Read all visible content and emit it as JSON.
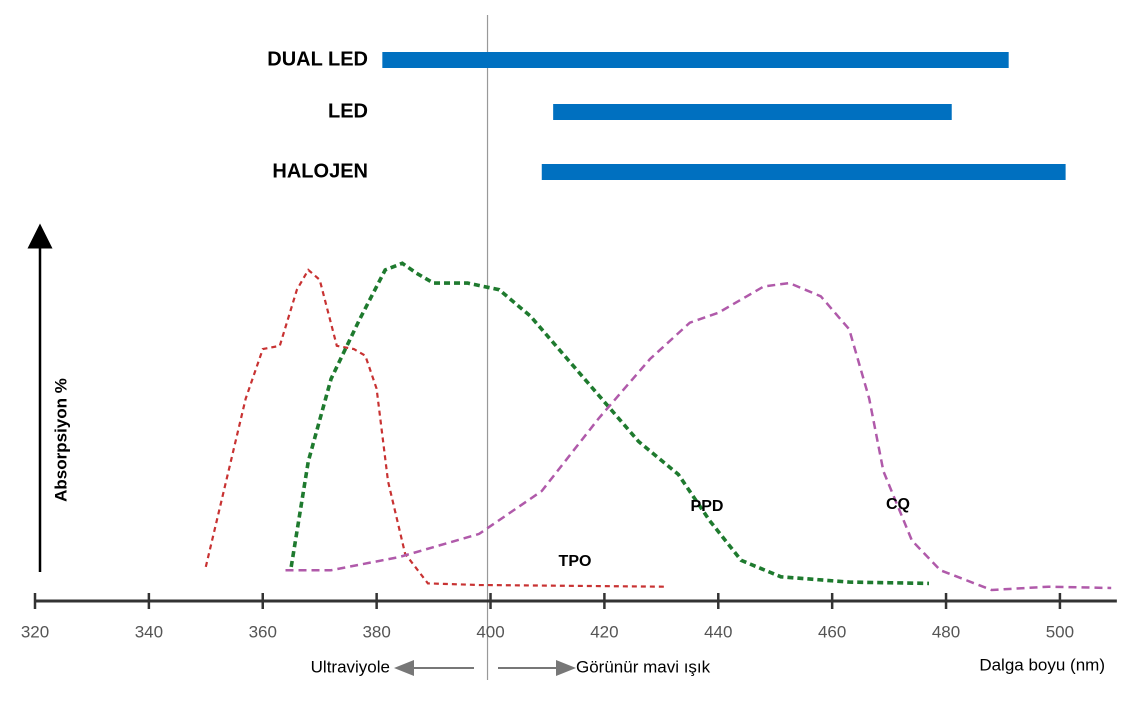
{
  "chart_data": {
    "type": "line",
    "x_label": "Dalga boyu (nm)",
    "y_label": "Absorpsiyon %",
    "xlim": [
      320,
      510
    ],
    "ylim": [
      0,
      100
    ],
    "xticks": [
      320,
      340,
      360,
      380,
      400,
      420,
      440,
      460,
      480,
      500
    ],
    "divider_x": 400,
    "left_annotation": "Ultraviyole",
    "right_annotation": "Görünür mavi ışık",
    "band_color": "#0070c0",
    "bands": [
      {
        "name": "DUAL LED",
        "start": 381,
        "end": 491
      },
      {
        "name": "LED",
        "start": 411,
        "end": 481
      },
      {
        "name": "HALOJEN",
        "start": 409,
        "end": 501
      }
    ],
    "series": [
      {
        "name": "TPO",
        "color": "#c83232",
        "x": [
          350,
          357,
          360,
          363,
          366,
          368,
          370,
          373,
          376,
          378,
          380,
          382,
          385,
          389,
          398,
          431
        ],
        "values": [
          7,
          58,
          73,
          74,
          91,
          97,
          94,
          74,
          73,
          71,
          61,
          33,
          11,
          2,
          1.5,
          1
        ]
      },
      {
        "name": "PPD",
        "color": "#1e7a2e",
        "x": [
          365,
          368,
          372,
          377,
          381.5,
          384.5,
          387,
          390,
          396,
          401.5,
          407,
          412,
          419,
          426,
          433,
          438.5,
          444,
          451,
          463,
          477
        ],
        "values": [
          7,
          39,
          64,
          82,
          97,
          99,
          96,
          93,
          93,
          91,
          83,
          73,
          59,
          45,
          35,
          21,
          9,
          4,
          2.4,
          2
        ]
      },
      {
        "name": "CQ",
        "color": "#b05aaa",
        "x": [
          364,
          372,
          384,
          398,
          409,
          419,
          428,
          435,
          440,
          445,
          448,
          452.5,
          458,
          463,
          466.5,
          469,
          474,
          479,
          488,
          498,
          509
        ],
        "values": [
          6,
          6,
          10,
          17,
          30,
          52,
          70,
          81,
          84,
          89,
          92,
          93,
          89,
          79,
          58,
          36,
          15,
          6,
          0,
          1,
          0.6
        ]
      }
    ]
  }
}
